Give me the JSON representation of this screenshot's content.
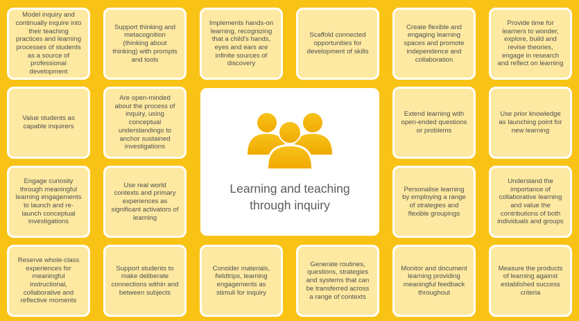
{
  "center": {
    "title": "Learning and teaching through inquiry",
    "icon": "people-group-icon"
  },
  "colors": {
    "background": "#F9C316",
    "card_fill": "#FDE9A1",
    "card_border": "#FFFFFF",
    "icon_gold": "#F5B800",
    "text": "#4F4F4F"
  },
  "cards": [
    "Model inquiry and continually inquire into their teaching practices and learning processes of students as a source of professional development",
    "Support thinking and metacognition (thinking about thinking) with prompts and tools",
    "Implements hands-on learning, recognizing that a child's hands, eyes and ears are infinite sources of discovery",
    "Scaffold connected opportunities for development of skills",
    "Create flexible and engaging learning spaces and promote independence and collaboration",
    "Provide time for learners to wonder, explore, build and revise theories, engage in research and reflect on learning",
    "Value students as capable inquirers",
    "Are open-minded about the process of inquiry, using conceptual understandings to anchor sustained investigations",
    "Extend learning with open-ended questions or problems",
    "Use prior knowledge as launching point for new learning",
    "Engage curiosity through meaningful learning engagements to launch and re-launch conceptual investigations",
    "Use real world contexts and primary experiences as significant activators of learning",
    "Personalise learning by employing a range of strategies and flexible groupings",
    "Understand the importance of collaborative learning and value the contributions of both individuals and groups",
    "Reserve whole-class experiences for meaningful instructional, collaborative and reflective moments",
    "Support students to make deliberate connections within and between subjects",
    "Consider materials, fieldtrips, learning engagements as stimuli for inquiry",
    "Generate routines, questions, strategies and systems that can be transferred across a range of contexts",
    "Monitor and document learning providing meaningful feedback throughout",
    "Measure the products of learning against established success criteria"
  ]
}
